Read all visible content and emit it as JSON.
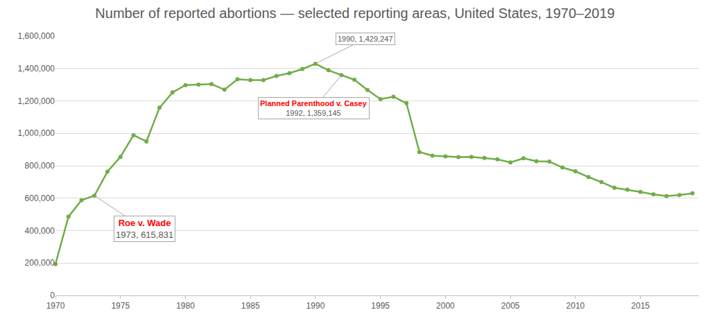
{
  "chart_data": {
    "type": "line",
    "title": "Number of reported abortions — selected reporting areas, United States, 1970–2019",
    "x": [
      1970,
      1971,
      1972,
      1973,
      1974,
      1975,
      1976,
      1977,
      1978,
      1979,
      1980,
      1981,
      1982,
      1983,
      1984,
      1985,
      1986,
      1987,
      1988,
      1989,
      1990,
      1991,
      1992,
      1993,
      1994,
      1995,
      1996,
      1997,
      1998,
      1999,
      2000,
      2001,
      2002,
      2003,
      2004,
      2005,
      2006,
      2007,
      2008,
      2009,
      2010,
      2011,
      2012,
      2013,
      2014,
      2015,
      2016,
      2017,
      2018,
      2019
    ],
    "values": [
      193491,
      485816,
      586760,
      615831,
      763476,
      854853,
      988267,
      949900,
      1157776,
      1251921,
      1297606,
      1300760,
      1303980,
      1268987,
      1333521,
      1328570,
      1328112,
      1353671,
      1371285,
      1396658,
      1429247,
      1388937,
      1359145,
      1330414,
      1267415,
      1210883,
      1225937,
      1186039,
      884273,
      861789,
      857475,
      853485,
      854122,
      848163,
      839226,
      820151,
      846181,
      827609,
      825564,
      789217,
      765651,
      730322,
      699202,
      664435,
      652639,
      638169,
      623471,
      612719,
      619591,
      629898
    ],
    "color": "#70ad47",
    "marker": "circle",
    "line_style": "solid",
    "xlim": [
      1970,
      2019.5
    ],
    "xticks": [
      1970,
      1975,
      1980,
      1985,
      1990,
      1995,
      2000,
      2005,
      2010,
      2015
    ],
    "ylim": [
      0,
      1600000
    ],
    "yticks": [
      0,
      {
        "value": 200000,
        "label": "200,000"
      },
      {
        "value": 400000,
        "label": "400,000"
      },
      {
        "value": 600000,
        "label": "600,000"
      },
      {
        "value": 800000,
        "label": "800,000"
      },
      {
        "value": 1000000,
        "label": "1,000,000"
      },
      {
        "value": 1200000,
        "label": "1,200,000"
      },
      {
        "value": 1400000,
        "label": "1,400,000"
      },
      {
        "value": 1600000,
        "label": "1,600,000"
      }
    ],
    "grid": true,
    "annotations": [
      {
        "x": 1990,
        "y": 1429247,
        "text": "1990, 1,429,247"
      },
      {
        "x": 1992,
        "y": 1359145,
        "label": "Planned Parenthood v. Casey",
        "text": "1992, 1,359,145"
      },
      {
        "x": 1973,
        "y": 615831,
        "label": "Roe v. Wade",
        "text": "1973, 615,831"
      }
    ]
  }
}
